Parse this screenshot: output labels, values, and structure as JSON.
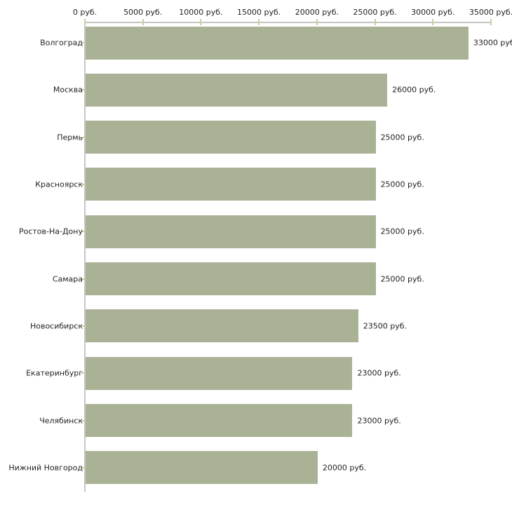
{
  "chart_data": {
    "type": "bar",
    "orientation": "horizontal",
    "title": "",
    "xlabel": "",
    "ylabel": "",
    "categories": [
      "Волгоград",
      "Москва",
      "Пермь",
      "Красноярск",
      "Ростов-На-Дону",
      "Самара",
      "Новосибирск",
      "Екатеринбург",
      "Челябинск",
      "Нижний Новгород"
    ],
    "values": [
      33000,
      26000,
      25000,
      25000,
      25000,
      25000,
      23500,
      23000,
      23000,
      20000
    ],
    "value_labels": [
      "33000 руб",
      "26000 руб.",
      "25000 руб.",
      "25000 руб.",
      "25000 руб.",
      "25000 руб.",
      "23500 руб.",
      "23000 руб.",
      "23000 руб.",
      "20000 руб."
    ],
    "x_ticks": [
      0,
      5000,
      10000,
      15000,
      20000,
      25000,
      30000,
      35000
    ],
    "x_tick_labels": [
      "0 руб.",
      "5000 руб.",
      "10000 руб.",
      "15000 руб.",
      "20000 руб.",
      "25000 руб.",
      "30000 руб.",
      "35000 руб."
    ],
    "xlim": [
      0,
      35000
    ],
    "grid": false,
    "legend": null,
    "colors": {
      "bar": "#aab296",
      "axis": "#c6c6c6",
      "tick": "#cccc9f",
      "text": "#1f1f1f",
      "background": "#ffffff"
    }
  }
}
